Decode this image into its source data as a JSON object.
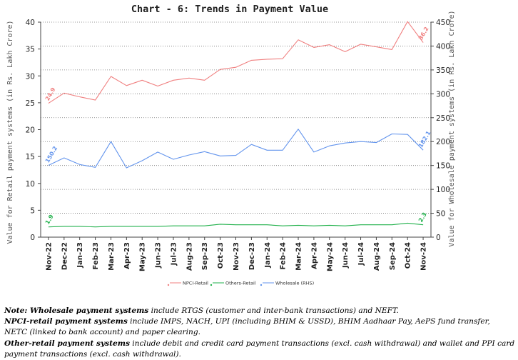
{
  "chart_data": {
    "type": "line",
    "title": "Chart - 6: Trends in Payment Value",
    "ylabel": "Value for Retail payment systems (in Rs. Lakh Crore)",
    "y2label": "Value for Wholesale payment systems (in Rs. Lakh Crore)",
    "ylim": [
      0,
      40
    ],
    "y2lim": [
      0,
      450
    ],
    "yticks": [
      "0",
      "5",
      "10",
      "15",
      "20",
      "25",
      "30",
      "35",
      "40"
    ],
    "y2ticks": [
      "0",
      "50",
      "100",
      "150",
      "200",
      "250",
      "300",
      "350",
      "400",
      "450"
    ],
    "grid": true,
    "legend_position": "bottom",
    "categories": [
      "Nov-22",
      "Dec-22",
      "Jan-23",
      "Feb-23",
      "Mar-23",
      "Apr-23",
      "May-23",
      "Jun-23",
      "Jul-23",
      "Aug-23",
      "Sep-23",
      "Oct-23",
      "Nov-23",
      "Dec-23",
      "Jan-24",
      "Feb-24",
      "Mar-24",
      "Apr-24",
      "May-24",
      "Jun-24",
      "Jul-24",
      "Aug-24",
      "Sep-24",
      "Oct-24",
      "Nov-24"
    ],
    "series": [
      {
        "name": "NPCI-Retail",
        "axis": "left",
        "color": "#f08080",
        "values": [
          24.9,
          26.8,
          26.1,
          25.5,
          29.9,
          28.2,
          29.2,
          28.1,
          29.2,
          29.6,
          29.2,
          31.2,
          31.6,
          32.9,
          33.1,
          33.2,
          36.7,
          35.3,
          35.8,
          34.5,
          35.9,
          35.4,
          34.9,
          40.1,
          36.2
        ],
        "first_label": "24.9",
        "last_label": "36.2"
      },
      {
        "name": "Others-Retail",
        "axis": "left",
        "color": "#22b14c",
        "values": [
          1.9,
          2.0,
          2.0,
          1.9,
          2.0,
          2.0,
          2.0,
          2.0,
          2.1,
          2.1,
          2.1,
          2.4,
          2.3,
          2.3,
          2.3,
          2.1,
          2.2,
          2.1,
          2.2,
          2.1,
          2.3,
          2.3,
          2.3,
          2.6,
          2.3
        ],
        "first_label": "1.9",
        "last_label": "2.3"
      },
      {
        "name": "Wholesale (RHS)",
        "axis": "right",
        "color": "#6495ed",
        "values": [
          150.2,
          166,
          152,
          146,
          200,
          145,
          160,
          178,
          163,
          172,
          179,
          170,
          171,
          194,
          182,
          182,
          226,
          178,
          191,
          197,
          200,
          198,
          216,
          215,
          182.1
        ],
        "first_label": "150.2",
        "last_label": "182.1"
      }
    ]
  },
  "notes": [
    {
      "bold": "Note: Wholesale payment systems",
      "text": " include RTGS (customer and inter-bank transactions) and NEFT."
    },
    {
      "bold": "NPCI-retail payment systems",
      "text": " include IMPS, NACH, UPI (including BHIM & USSD), BHIM Aadhaar Pay, AePS fund transfer, NETC (linked to bank account) and paper clearing."
    },
    {
      "bold": "Other-retail payment systems",
      "text": " include debit and credit card payment transactions (excl. cash withdrawal) and wallet and PPI card payment transactions (excl. cash withdrawal)."
    }
  ]
}
